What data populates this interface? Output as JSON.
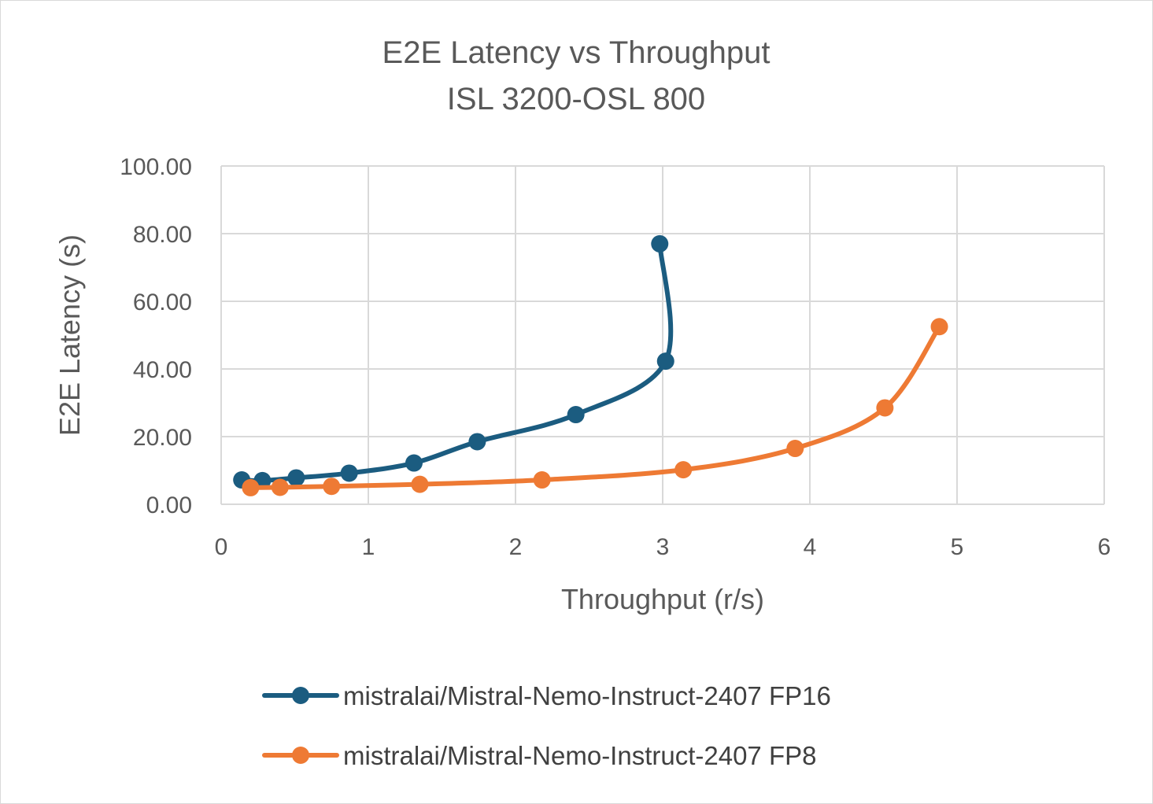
{
  "chart_data": {
    "type": "scatter",
    "title": "E2E Latency vs Throughput",
    "subtitle": "ISL 3200-OSL 800",
    "xlabel": "Throughput (r/s)",
    "ylabel": "E2E Latency (s)",
    "xlim": [
      0,
      6
    ],
    "ylim": [
      0,
      100
    ],
    "x_ticks": [
      "0",
      "1",
      "2",
      "3",
      "4",
      "5",
      "6"
    ],
    "y_ticks": [
      "0.00",
      "20.00",
      "40.00",
      "60.00",
      "80.00",
      "100.00"
    ],
    "grid": true,
    "legend_position": "bottom",
    "smoothed_lines": true,
    "series": [
      {
        "name": "mistralai/Mistral-Nemo-Instruct-2407 FP16",
        "color": "#1b5c80",
        "x": [
          0.14,
          0.28,
          0.51,
          0.87,
          1.31,
          1.74,
          2.41,
          3.02,
          2.98
        ],
        "y": [
          7.2,
          7.0,
          7.8,
          9.2,
          12.2,
          18.5,
          26.5,
          42.3,
          77.0
        ]
      },
      {
        "name": "mistralai/Mistral-Nemo-Instruct-2407 FP8",
        "color": "#ee7a34",
        "x": [
          0.2,
          0.4,
          0.75,
          1.35,
          2.18,
          3.14,
          3.9,
          4.51,
          4.88
        ],
        "y": [
          4.9,
          5.0,
          5.3,
          5.9,
          7.2,
          10.2,
          16.5,
          28.5,
          52.5
        ]
      }
    ]
  }
}
